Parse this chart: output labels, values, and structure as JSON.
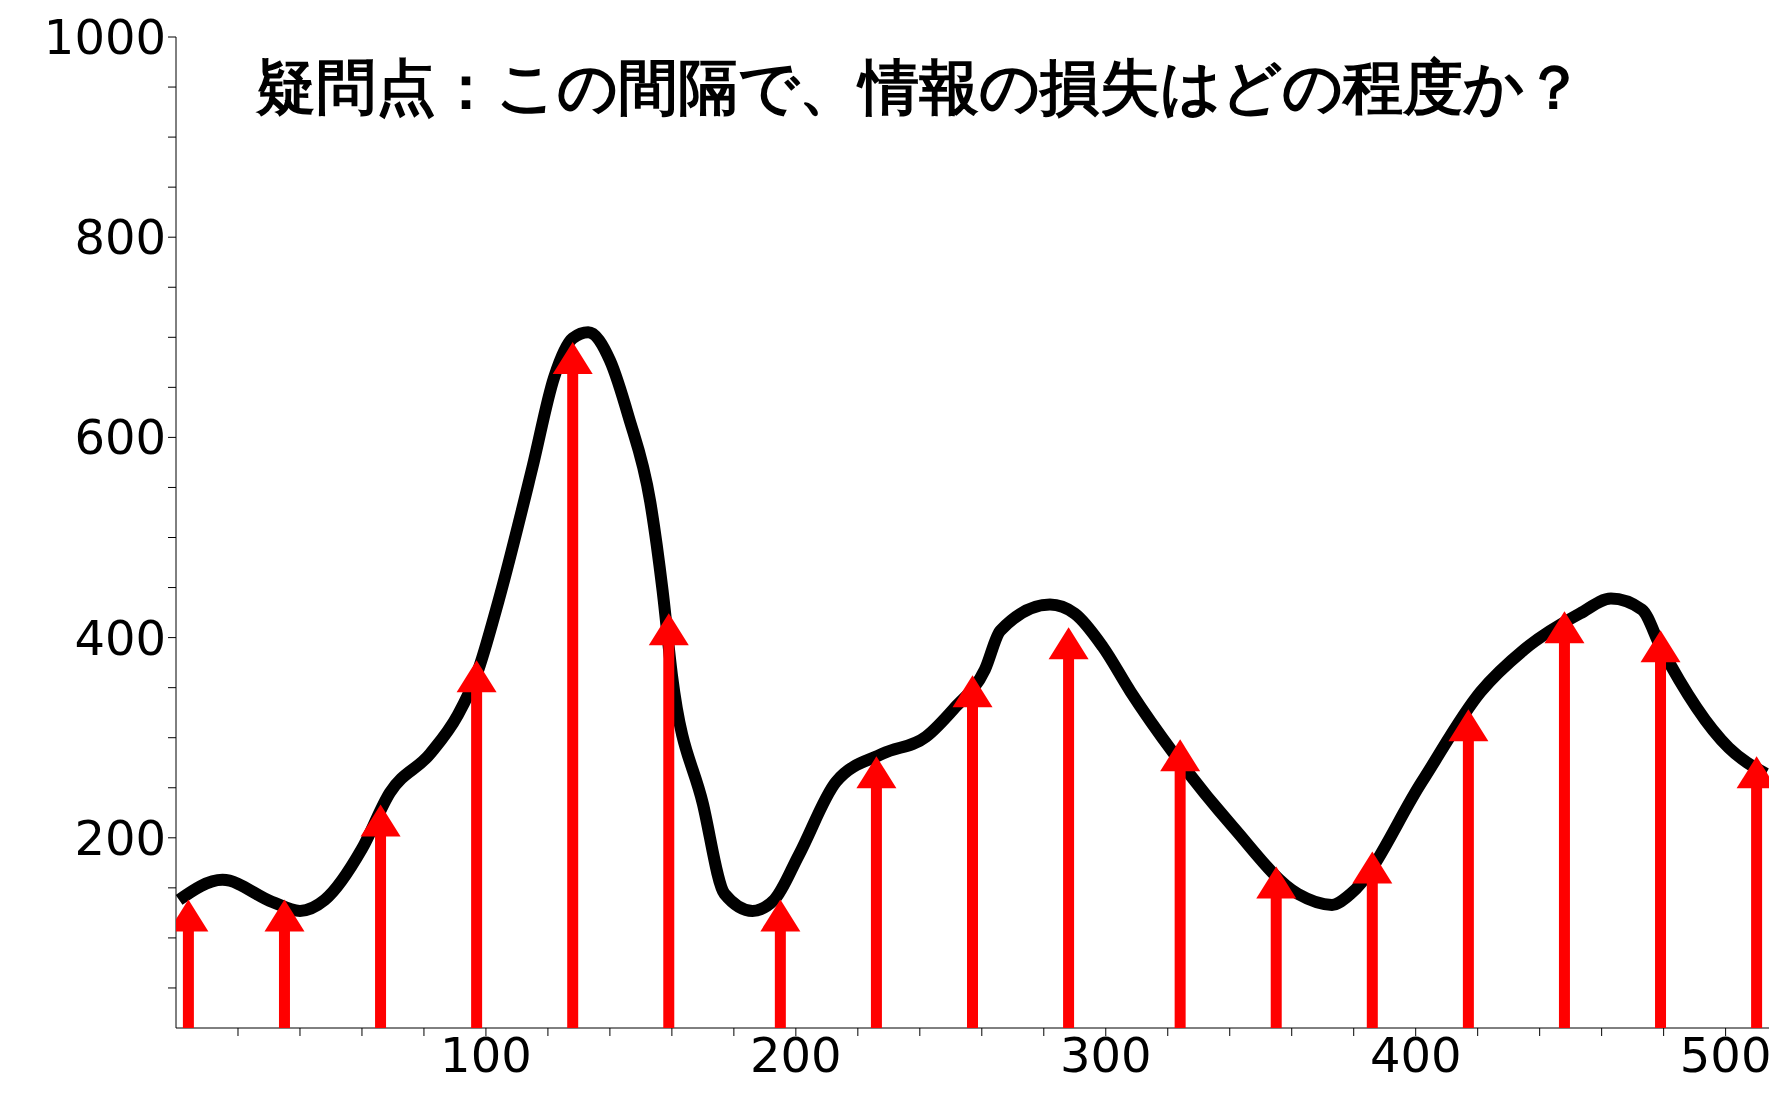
{
  "chart_data": {
    "type": "line",
    "subtitle": "疑問点：この間隔で、情報の損失はどの程度か？",
    "xlim": [
      0,
      514
    ],
    "xticks": [
      {
        "value": 20,
        "label": null
      },
      {
        "value": 40,
        "label": null
      },
      {
        "value": 60,
        "label": null
      },
      {
        "value": 80,
        "label": null
      },
      100,
      {
        "value": 120,
        "label": null
      },
      {
        "value": 140,
        "label": null
      },
      {
        "value": 160,
        "label": null
      },
      {
        "value": 180,
        "label": null
      },
      200,
      {
        "value": 220,
        "label": null
      },
      {
        "value": 240,
        "label": null
      },
      {
        "value": 260,
        "label": null
      },
      {
        "value": 280,
        "label": null
      },
      300,
      {
        "value": 320,
        "label": null
      },
      {
        "value": 340,
        "label": null
      },
      {
        "value": 360,
        "label": null
      },
      {
        "value": 380,
        "label": null
      },
      400,
      {
        "value": 420,
        "label": null
      },
      {
        "value": 440,
        "label": null
      },
      {
        "value": 460,
        "label": null
      },
      {
        "value": 480,
        "label": null
      },
      500
    ],
    "ylim": [
      10,
      1000
    ],
    "yticks": [
      {
        "value": 50,
        "label": null
      },
      {
        "value": 100,
        "label": null
      },
      {
        "value": 150,
        "label": null
      },
      200,
      {
        "value": 250,
        "label": null
      },
      {
        "value": 300,
        "label": null
      },
      {
        "value": 350,
        "label": null
      },
      400,
      {
        "value": 450,
        "label": null
      },
      {
        "value": 500,
        "label": null
      },
      {
        "value": 550,
        "label": null
      },
      600,
      {
        "value": 650,
        "label": null
      },
      {
        "value": 700,
        "label": null
      },
      {
        "value": 750,
        "label": null
      },
      800,
      {
        "value": 850,
        "label": null
      },
      {
        "value": 900,
        "label": null
      },
      {
        "value": 950,
        "label": null
      },
      1000
    ],
    "grid": false,
    "series": [
      {
        "color": "#000000",
        "marker": "none",
        "line_style": "solid",
        "x": [
          1,
          15,
          31,
          40,
          48,
          60,
          69,
          82,
          91,
          97,
          104,
          115,
          122,
          128,
          133,
          140,
          146,
          153,
          157,
          160,
          170,
          177,
          186,
          193,
          201,
          213,
          228,
          242,
          251,
          261,
          266,
          282,
          290,
          299,
          308,
          322,
          341,
          362,
          373,
          379,
          402,
          421,
          435,
          453,
          463,
          473,
          479,
          501,
          513
        ],
        "values": [
          138,
          158,
          136,
          127,
          138,
          189,
          245,
          284,
          323,
          363,
          436,
          570,
          660,
          699,
          705,
          677,
          621,
          536,
          447,
          363,
          234,
          144,
          127,
          138,
          183,
          256,
          284,
          301,
          329,
          368,
          407,
          433,
          424,
          391,
          346,
          284,
          211,
          144,
          133,
          144,
          256,
          346,
          388,
          424,
          439,
          428,
          391,
          290,
          264
        ]
      },
      {
        "type": "lollipop",
        "color": "#ff0000",
        "marker": "triangle",
        "x": [
          4,
          35,
          66,
          97,
          128,
          159,
          195,
          226,
          257,
          288,
          324,
          355,
          386,
          417,
          448,
          479,
          510
        ],
        "values": [
          117,
          117,
          212,
          356,
          674,
          403,
          117,
          260,
          341,
          389,
          277,
          150,
          165,
          307,
          405,
          386,
          260
        ]
      }
    ]
  }
}
